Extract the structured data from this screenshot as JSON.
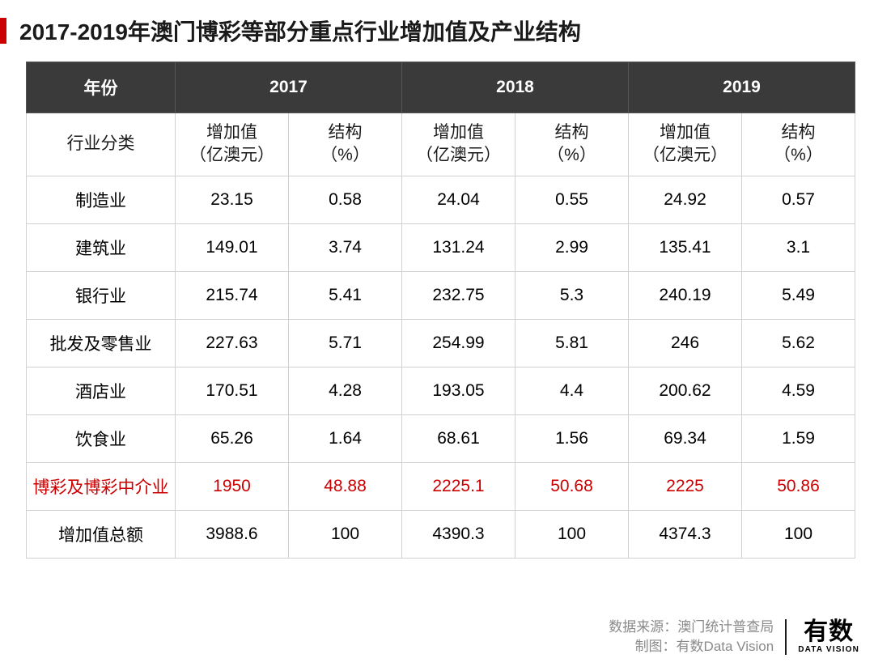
{
  "title": "2017-2019年澳门博彩等部分重点行业增加值及产业结构",
  "accent_color": "#cc0000",
  "header_bg": "#3a3a3a",
  "header_fg": "#ffffff",
  "border_color": "#d0d0d0",
  "highlight_color": "#cc0000",
  "table": {
    "year_label": "年份",
    "years": [
      "2017",
      "2018",
      "2019"
    ],
    "category_label": "行业分类",
    "sub_headers": {
      "value": "增加值\n（亿澳元）",
      "share": "结构\n（%）"
    },
    "rows": [
      {
        "category": "制造业",
        "cells": [
          "23.15",
          "0.58",
          "24.04",
          "0.55",
          "24.92",
          "0.57"
        ],
        "highlight": false
      },
      {
        "category": "建筑业",
        "cells": [
          "149.01",
          "3.74",
          "131.24",
          "2.99",
          "135.41",
          "3.1"
        ],
        "highlight": false
      },
      {
        "category": "银行业",
        "cells": [
          "215.74",
          "5.41",
          "232.75",
          "5.3",
          "240.19",
          "5.49"
        ],
        "highlight": false
      },
      {
        "category": "批发及零售业",
        "cells": [
          "227.63",
          "5.71",
          "254.99",
          "5.81",
          "246",
          "5.62"
        ],
        "highlight": false
      },
      {
        "category": "酒店业",
        "cells": [
          "170.51",
          "4.28",
          "193.05",
          "4.4",
          "200.62",
          "4.59"
        ],
        "highlight": false
      },
      {
        "category": "饮食业",
        "cells": [
          "65.26",
          "1.64",
          "68.61",
          "1.56",
          "69.34",
          "1.59"
        ],
        "highlight": false
      },
      {
        "category": "博彩及博彩中介业",
        "cells": [
          "1950",
          "48.88",
          "2225.1",
          "50.68",
          "2225",
          "50.86"
        ],
        "highlight": true
      },
      {
        "category": "增加值总额",
        "cells": [
          "3988.6",
          "100",
          "4390.3",
          "100",
          "4374.3",
          "100"
        ],
        "highlight": false
      }
    ]
  },
  "footer": {
    "source": "数据来源：澳门统计普查局",
    "credit": "制图：有数Data Vision",
    "logo_main": "有数",
    "logo_sub": "DATA VISION"
  }
}
